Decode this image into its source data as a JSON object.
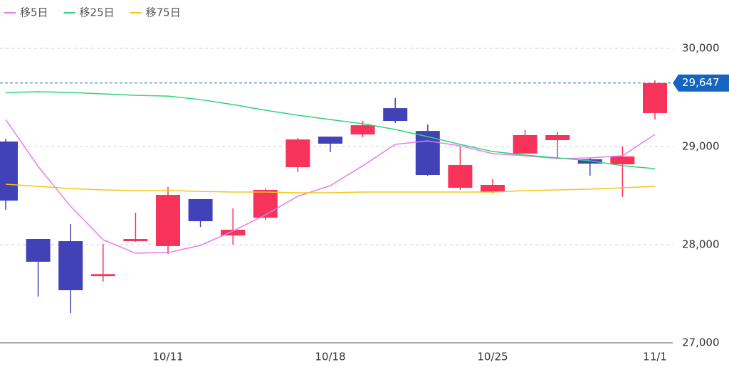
{
  "chart_data": {
    "type": "candlestick",
    "categories": [
      null,
      null,
      null,
      null,
      null,
      "10/11",
      null,
      null,
      null,
      null,
      "10/18",
      null,
      null,
      null,
      null,
      "10/25",
      null,
      null,
      null,
      null,
      "11/1"
    ],
    "open": [
      29051,
      28058,
      28036,
      27680,
      28036,
      27986,
      28464,
      28094,
      28275,
      28790,
      29101,
      29123,
      29391,
      29159,
      28580,
      28536,
      28928,
      29065,
      28870,
      28819,
      29341
    ],
    "high": [
      29080,
      28058,
      28210,
      28007,
      28326,
      28587,
      28464,
      28370,
      28572,
      29087,
      29101,
      29261,
      29493,
      29225,
      29000,
      28667,
      29167,
      29145,
      28891,
      29000,
      29674
    ],
    "low": [
      28355,
      27471,
      27304,
      27623,
      28029,
      27906,
      28181,
      28000,
      28254,
      28739,
      28942,
      29094,
      29239,
      28703,
      28558,
      28522,
      28928,
      28884,
      28703,
      28486,
      29275
    ],
    "close": [
      28449,
      27826,
      27536,
      27700,
      28058,
      28507,
      28239,
      28152,
      28558,
      29072,
      29029,
      29217,
      29261,
      28710,
      28812,
      28609,
      29116,
      29116,
      28826,
      28899,
      29647
    ],
    "up_color": "#f7335a",
    "down_color": "#4242b8",
    "series": [
      {
        "name": "移5日",
        "color": "#e77cf0",
        "values": [
          29275,
          28797,
          28391,
          28051,
          27913,
          27920,
          27993,
          28138,
          28304,
          28493,
          28601,
          28804,
          29022,
          29058,
          29007,
          28928,
          28906,
          28877,
          28884,
          28906,
          29123
        ]
      },
      {
        "name": "移25日",
        "color": "#2fd37b",
        "values": [
          29551,
          29558,
          29551,
          29536,
          29522,
          29514,
          29478,
          29428,
          29370,
          29319,
          29275,
          29232,
          29174,
          29101,
          29022,
          28949,
          28913,
          28884,
          28855,
          28804,
          28775
        ]
      },
      {
        "name": "移75日",
        "color": "#f5c518",
        "values": [
          28616,
          28594,
          28572,
          28558,
          28551,
          28551,
          28543,
          28536,
          28536,
          28529,
          28529,
          28536,
          28536,
          28536,
          28536,
          28536,
          28551,
          28558,
          28565,
          28580,
          28594
        ]
      }
    ],
    "price_line": 29647,
    "price_line_label": "29,647",
    "price_line_color": "#1565c0",
    "ylim": [
      27000,
      30493
    ],
    "yticks": [
      {
        "value": 27000,
        "label": "27,000"
      },
      {
        "value": 28000,
        "label": "28,000"
      },
      {
        "value": 29000,
        "label": "29,000"
      },
      {
        "value": 30000,
        "label": "30,000"
      }
    ],
    "grid": true
  }
}
